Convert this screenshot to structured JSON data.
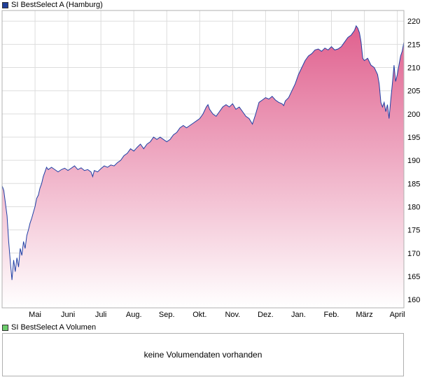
{
  "legend": {
    "price_label": "SI BestSelect A (Hamburg)",
    "price_color": "#1f3f99",
    "volume_label": "SI BestSelect A Volumen",
    "volume_color": "#6ccc6c"
  },
  "volume_panel": {
    "message": "keine Volumendaten vorhanden"
  },
  "colors": {
    "line": "#1f3fa5",
    "fill_top": "#e0608e",
    "fill_bottom": "#ffffff",
    "grid": "#dddddd"
  },
  "chart_data": {
    "type": "area",
    "title": "SI BestSelect A (Hamburg)",
    "xlabel": "",
    "ylabel": "",
    "ylim": [
      158.2,
      222.3
    ],
    "xlim": [
      0,
      12.2
    ],
    "y_ticks": [
      160,
      165,
      170,
      175,
      180,
      185,
      190,
      195,
      200,
      205,
      210,
      215,
      220
    ],
    "x_ticks": [
      {
        "label": "Mai",
        "pos": 1
      },
      {
        "label": "Juni",
        "pos": 2
      },
      {
        "label": "Juli",
        "pos": 3
      },
      {
        "label": "Aug.",
        "pos": 4
      },
      {
        "label": "Sep.",
        "pos": 5
      },
      {
        "label": "Okt.",
        "pos": 6
      },
      {
        "label": "Nov.",
        "pos": 7
      },
      {
        "label": "Dez.",
        "pos": 8
      },
      {
        "label": "Jan.",
        "pos": 9
      },
      {
        "label": "Feb.",
        "pos": 10
      },
      {
        "label": "März",
        "pos": 11
      },
      {
        "label": "April",
        "pos": 12
      }
    ],
    "grid": true,
    "series": [
      {
        "name": "SI BestSelect A (Hamburg)",
        "points": [
          [
            0.0,
            184.5
          ],
          [
            0.05,
            183.5
          ],
          [
            0.1,
            180.8
          ],
          [
            0.15,
            178.0
          ],
          [
            0.2,
            172.5
          ],
          [
            0.25,
            168.0
          ],
          [
            0.3,
            164.2
          ],
          [
            0.35,
            168.5
          ],
          [
            0.4,
            166.0
          ],
          [
            0.45,
            169.0
          ],
          [
            0.5,
            167.0
          ],
          [
            0.55,
            171.0
          ],
          [
            0.6,
            169.5
          ],
          [
            0.65,
            172.5
          ],
          [
            0.7,
            171.0
          ],
          [
            0.75,
            173.8
          ],
          [
            0.8,
            175.0
          ],
          [
            0.85,
            176.5
          ],
          [
            0.9,
            177.5
          ],
          [
            0.95,
            178.8
          ],
          [
            1.0,
            180.0
          ],
          [
            1.05,
            181.8
          ],
          [
            1.1,
            182.5
          ],
          [
            1.15,
            184.0
          ],
          [
            1.2,
            185.0
          ],
          [
            1.25,
            186.5
          ],
          [
            1.3,
            187.5
          ],
          [
            1.35,
            188.5
          ],
          [
            1.4,
            188.0
          ],
          [
            1.5,
            188.5
          ],
          [
            1.6,
            188.0
          ],
          [
            1.7,
            187.5
          ],
          [
            1.8,
            188.0
          ],
          [
            1.9,
            188.3
          ],
          [
            2.0,
            187.8
          ],
          [
            2.1,
            188.3
          ],
          [
            2.2,
            188.8
          ],
          [
            2.3,
            188.0
          ],
          [
            2.4,
            188.4
          ],
          [
            2.5,
            187.8
          ],
          [
            2.6,
            188.0
          ],
          [
            2.7,
            187.5
          ],
          [
            2.75,
            186.5
          ],
          [
            2.8,
            187.8
          ],
          [
            2.9,
            187.5
          ],
          [
            3.0,
            188.2
          ],
          [
            3.1,
            188.8
          ],
          [
            3.2,
            188.5
          ],
          [
            3.3,
            189.0
          ],
          [
            3.4,
            188.8
          ],
          [
            3.5,
            189.5
          ],
          [
            3.6,
            190.0
          ],
          [
            3.7,
            191.0
          ],
          [
            3.8,
            191.5
          ],
          [
            3.9,
            192.5
          ],
          [
            4.0,
            192.0
          ],
          [
            4.1,
            192.8
          ],
          [
            4.2,
            193.5
          ],
          [
            4.3,
            192.5
          ],
          [
            4.4,
            193.5
          ],
          [
            4.5,
            194.0
          ],
          [
            4.6,
            195.0
          ],
          [
            4.7,
            194.5
          ],
          [
            4.8,
            195.0
          ],
          [
            4.9,
            194.5
          ],
          [
            5.0,
            194.0
          ],
          [
            5.1,
            194.5
          ],
          [
            5.2,
            195.5
          ],
          [
            5.3,
            196.0
          ],
          [
            5.4,
            197.0
          ],
          [
            5.5,
            197.5
          ],
          [
            5.6,
            197.0
          ],
          [
            5.7,
            197.5
          ],
          [
            5.8,
            198.0
          ],
          [
            5.9,
            198.5
          ],
          [
            6.0,
            199.0
          ],
          [
            6.1,
            200.0
          ],
          [
            6.2,
            201.5
          ],
          [
            6.25,
            202.0
          ],
          [
            6.3,
            201.0
          ],
          [
            6.4,
            200.0
          ],
          [
            6.5,
            199.5
          ],
          [
            6.6,
            200.5
          ],
          [
            6.7,
            201.5
          ],
          [
            6.8,
            202.0
          ],
          [
            6.9,
            201.5
          ],
          [
            7.0,
            202.2
          ],
          [
            7.1,
            201.0
          ],
          [
            7.2,
            201.5
          ],
          [
            7.3,
            200.5
          ],
          [
            7.4,
            199.5
          ],
          [
            7.5,
            199.0
          ],
          [
            7.6,
            197.8
          ],
          [
            7.7,
            200.0
          ],
          [
            7.8,
            202.5
          ],
          [
            7.9,
            203.0
          ],
          [
            8.0,
            203.5
          ],
          [
            8.1,
            203.2
          ],
          [
            8.2,
            203.8
          ],
          [
            8.3,
            203.0
          ],
          [
            8.4,
            202.5
          ],
          [
            8.5,
            202.2
          ],
          [
            8.55,
            201.8
          ],
          [
            8.6,
            202.8
          ],
          [
            8.7,
            203.5
          ],
          [
            8.8,
            205.0
          ],
          [
            8.9,
            206.5
          ],
          [
            9.0,
            208.5
          ],
          [
            9.1,
            210.0
          ],
          [
            9.2,
            211.5
          ],
          [
            9.3,
            212.5
          ],
          [
            9.4,
            213.0
          ],
          [
            9.5,
            213.8
          ],
          [
            9.6,
            214.0
          ],
          [
            9.7,
            213.5
          ],
          [
            9.8,
            214.2
          ],
          [
            9.9,
            213.8
          ],
          [
            10.0,
            214.5
          ],
          [
            10.1,
            213.8
          ],
          [
            10.2,
            214.0
          ],
          [
            10.3,
            214.5
          ],
          [
            10.4,
            215.5
          ],
          [
            10.5,
            216.5
          ],
          [
            10.6,
            217.0
          ],
          [
            10.7,
            218.0
          ],
          [
            10.75,
            219.0
          ],
          [
            10.8,
            218.5
          ],
          [
            10.85,
            217.5
          ],
          [
            10.9,
            215.5
          ],
          [
            10.95,
            212.0
          ],
          [
            11.0,
            211.5
          ],
          [
            11.1,
            212.0
          ],
          [
            11.2,
            210.5
          ],
          [
            11.3,
            210.0
          ],
          [
            11.4,
            208.5
          ],
          [
            11.45,
            206.5
          ],
          [
            11.5,
            202.5
          ],
          [
            11.55,
            201.5
          ],
          [
            11.6,
            202.5
          ],
          [
            11.65,
            200.5
          ],
          [
            11.7,
            202.0
          ],
          [
            11.75,
            199.0
          ],
          [
            11.8,
            203.0
          ],
          [
            11.85,
            206.5
          ],
          [
            11.9,
            210.5
          ],
          [
            11.95,
            207.0
          ],
          [
            12.0,
            208.5
          ],
          [
            12.05,
            210.5
          ],
          [
            12.1,
            212.5
          ],
          [
            12.15,
            213.5
          ],
          [
            12.2,
            215.5
          ]
        ]
      }
    ]
  }
}
